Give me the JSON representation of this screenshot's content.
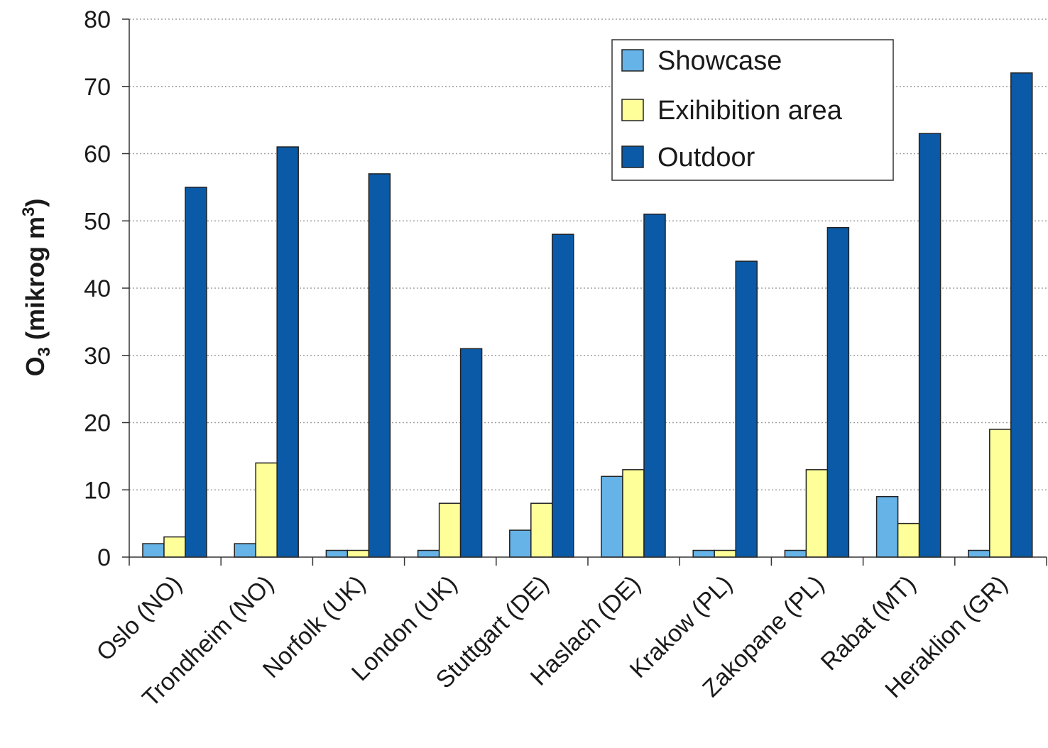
{
  "chart_data": {
    "type": "bar",
    "title": "",
    "ylabel_main": "O",
    "ylabel_sub": "3",
    "ylabel_rest": " (mikrog m",
    "ylabel_sup": "3",
    "ylabel_end": ")",
    "ylim": [
      0,
      80
    ],
    "yticks": [
      0,
      10,
      20,
      30,
      40,
      50,
      60,
      70,
      80
    ],
    "grid": true,
    "legend_position": "top-right",
    "categories": [
      "Oslo (NO)",
      "Trondheim (NO)",
      "Norfolk (UK)",
      "London (UK)",
      "Stuttgart (DE)",
      "Haslach (DE)",
      "Krakow (PL)",
      "Zakopane (PL)",
      "Rabat (MT)",
      "Heraklion (GR)"
    ],
    "series": [
      {
        "name": "Showcase",
        "color": "#66b3e8",
        "values": [
          2,
          2,
          1,
          1,
          4,
          12,
          1,
          1,
          9,
          1
        ]
      },
      {
        "name": "Exihibition area",
        "color": "#ffff99",
        "values": [
          3,
          14,
          1,
          8,
          8,
          13,
          1,
          13,
          5,
          19
        ]
      },
      {
        "name": "Outdoor",
        "color": "#0a5aa8",
        "values": [
          55,
          61,
          57,
          31,
          48,
          51,
          44,
          49,
          63,
          72
        ]
      }
    ]
  }
}
